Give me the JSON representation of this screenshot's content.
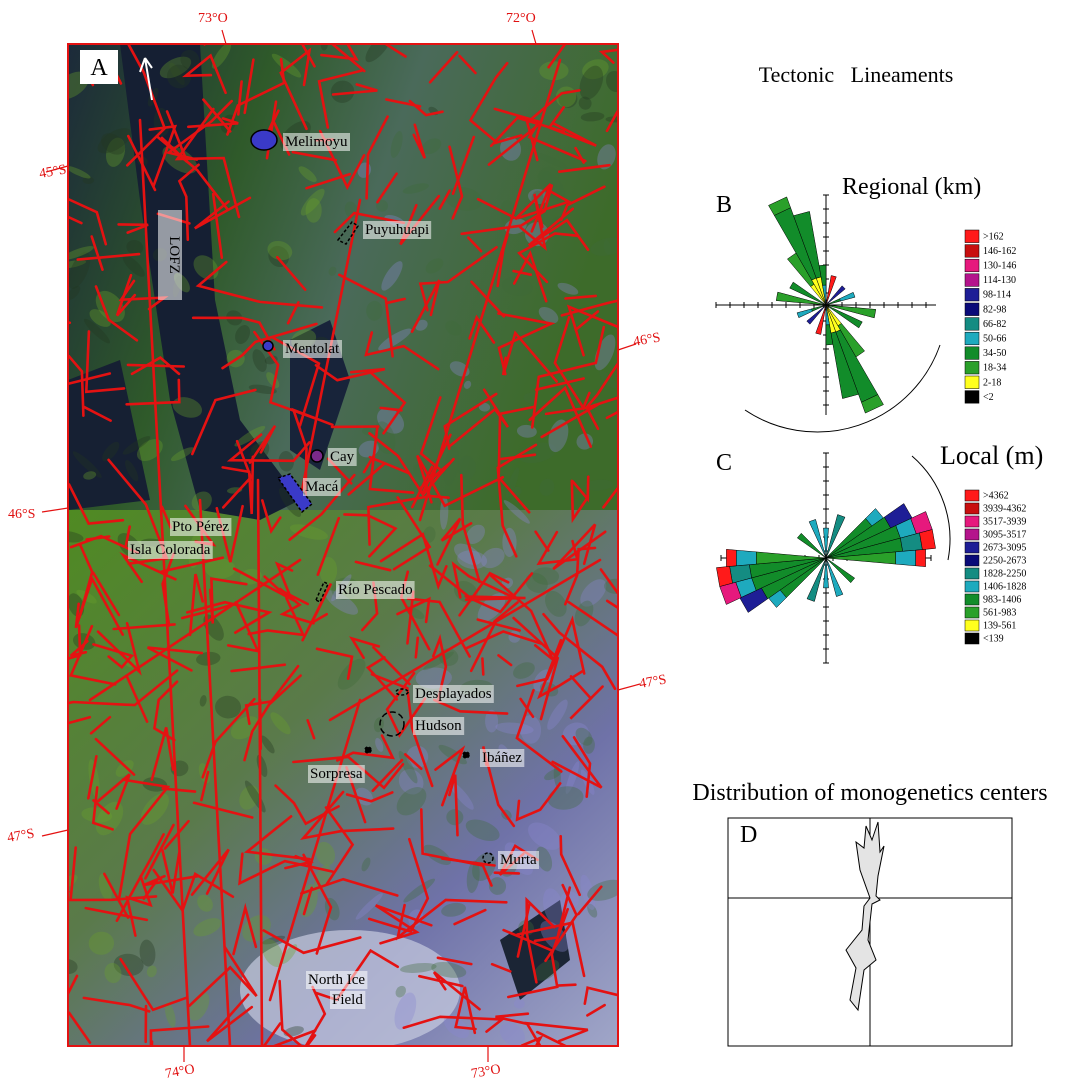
{
  "map": {
    "panel": "A",
    "coordinates": {
      "top": [
        "73°O",
        "72°O"
      ],
      "left": [
        "45°S",
        "46°S",
        "47°S"
      ],
      "right": [
        "46°S",
        "47°S"
      ],
      "bottom": [
        "74°O",
        "73°O"
      ]
    },
    "places": [
      "Melimoyu",
      "Puyuhuapi",
      "LOFZ",
      "Mentolat",
      "Cay",
      "Macá",
      "Pto Pérez",
      "Isla Colorada",
      "Río Pescado",
      "Desplayados",
      "Hudson",
      "Ibáñez",
      "Sorpresa",
      "Murta",
      "North Ice",
      "Field"
    ]
  },
  "title": "Tectonic   Lineaments",
  "regional": {
    "panel": "B",
    "title": "Regional (km)",
    "legend": [
      {
        "label": ">162",
        "color": "#ff1a1a"
      },
      {
        "label": "146-162",
        "color": "#c80f0f"
      },
      {
        "label": "130-146",
        "color": "#e6197d"
      },
      {
        "label": "114-130",
        "color": "#b4148c"
      },
      {
        "label": "98-114",
        "color": "#1e1e96"
      },
      {
        "label": "82-98",
        "color": "#0a0a78"
      },
      {
        "label": "66-82",
        "color": "#148c82"
      },
      {
        "label": "50-66",
        "color": "#1eaabe"
      },
      {
        "label": "34-50",
        "color": "#128c2a"
      },
      {
        "label": "18-34",
        "color": "#2aa02a"
      },
      {
        "label": "2-18",
        "color": "#ffff1e"
      },
      {
        "label": "<2",
        "color": "#000000"
      }
    ]
  },
  "local": {
    "panel": "C",
    "title": "Local (m)",
    "legend": [
      {
        "label": ">4362",
        "color": "#ff1a1a"
      },
      {
        "label": "3939-4362",
        "color": "#c80f0f"
      },
      {
        "label": "3517-3939",
        "color": "#e6197d"
      },
      {
        "label": "3095-3517",
        "color": "#b4148c"
      },
      {
        "label": "2673-3095",
        "color": "#1e1e96"
      },
      {
        "label": "2250-2673",
        "color": "#0a0a78"
      },
      {
        "label": "1828-2250",
        "color": "#148c82"
      },
      {
        "label": "1406-1828",
        "color": "#1eaabe"
      },
      {
        "label": "983-1406",
        "color": "#128c2a"
      },
      {
        "label": "561-983",
        "color": "#2aa02a"
      },
      {
        "label": "139-561",
        "color": "#ffff1e"
      },
      {
        "label": "<139",
        "color": "#000000"
      }
    ]
  },
  "monogenetic": {
    "panel": "D",
    "title": "Distribution of monogenetics centers"
  }
}
